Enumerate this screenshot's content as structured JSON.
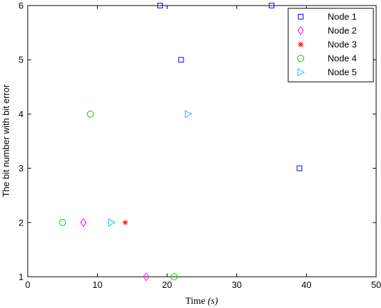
{
  "chart_data": {
    "type": "scatter",
    "xlabel_main": "Time",
    "xlabel_unit": "(s)",
    "ylabel": "The bit number with bit error",
    "xlim": [
      0,
      50
    ],
    "ylim": [
      1,
      6
    ],
    "x_ticks": [
      0,
      10,
      20,
      30,
      40,
      50
    ],
    "y_ticks": [
      1,
      2,
      3,
      4,
      5,
      6
    ],
    "grid": false,
    "legend_position": "top-right",
    "series": [
      {
        "name": "Node 1",
        "marker": "square",
        "color": "#0000ff",
        "points": [
          [
            19,
            6
          ],
          [
            35,
            6
          ],
          [
            22,
            5
          ],
          [
            39,
            3
          ]
        ]
      },
      {
        "name": "Node 2",
        "marker": "diamond",
        "color": "#ff00ff",
        "points": [
          [
            8,
            2
          ],
          [
            17,
            1
          ]
        ]
      },
      {
        "name": "Node 3",
        "marker": "asterisk",
        "color": "#ff0000",
        "points": [
          [
            14,
            2
          ]
        ]
      },
      {
        "name": "Node 4",
        "marker": "circle",
        "color": "#00cc00",
        "points": [
          [
            9,
            4
          ],
          [
            5,
            2
          ],
          [
            21,
            1
          ]
        ]
      },
      {
        "name": "Node 5",
        "marker": "triangle-right",
        "color": "#00cccc",
        "points": [
          [
            23,
            4
          ],
          [
            12,
            2
          ]
        ]
      }
    ]
  }
}
